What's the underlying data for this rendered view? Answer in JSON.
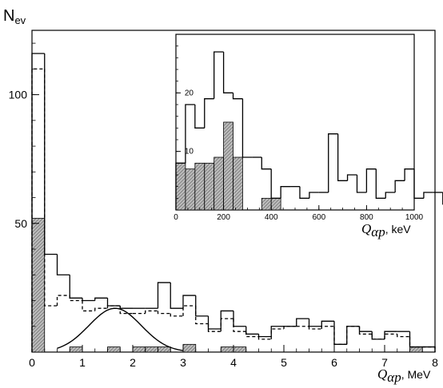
{
  "chart_data": [
    {
      "type": "histogram",
      "ylabel": "N",
      "ylabel_sub": "ev",
      "xlabel_main": "Q",
      "xlabel_sub": "αp",
      "xlabel_unit": ", MeV",
      "xlim": [
        0,
        8
      ],
      "ylim": [
        0,
        125
      ],
      "x_ticks": [
        0,
        1,
        2,
        3,
        4,
        5,
        6,
        7,
        8
      ],
      "x_tick_labels": [
        "0",
        "1",
        "2",
        "3",
        "4",
        "5",
        "6",
        "7",
        "8"
      ],
      "y_ticks": [
        50,
        100
      ],
      "y_tick_labels": [
        "50",
        "100"
      ],
      "bin_width": 0.25,
      "series": [
        {
          "style": "solid-step",
          "values": [
            116,
            38,
            30,
            21,
            20,
            21,
            18,
            17,
            17,
            17,
            27,
            17,
            22,
            14,
            9,
            16,
            10,
            7,
            6,
            10,
            10,
            13,
            10,
            12,
            3,
            10,
            8,
            5,
            8,
            8,
            2,
            2
          ]
        },
        {
          "style": "dashed-step",
          "values": [
            110,
            18,
            22,
            20,
            16,
            17,
            18,
            15,
            15,
            16,
            15,
            14,
            18,
            11,
            8,
            13,
            8,
            6,
            5,
            9,
            10,
            10,
            9,
            10,
            3,
            10,
            7,
            5,
            7,
            6,
            2,
            2
          ]
        },
        {
          "style": "hatched-filled",
          "values": [
            52,
            0,
            0,
            2,
            0,
            0,
            2,
            0,
            2,
            2,
            2,
            0,
            3,
            0,
            0,
            2,
            2,
            0,
            0,
            0,
            0,
            0,
            0,
            0,
            0,
            0,
            0,
            0,
            0,
            0,
            2,
            0
          ]
        },
        {
          "style": "solid-curve",
          "curve": {
            "shape": "gaussian",
            "mean": 1.65,
            "sigma": 0.52,
            "amplitude": 17,
            "from": 0.5,
            "to": 3.0
          }
        }
      ]
    },
    {
      "type": "histogram",
      "inset": true,
      "xlabel_main": "Q",
      "xlabel_sub": "αp",
      "xlabel_unit": ", keV",
      "xlim": [
        0,
        1000
      ],
      "ylim": [
        0,
        30
      ],
      "x_ticks": [
        0,
        200,
        400,
        600,
        800,
        1000
      ],
      "x_tick_labels": [
        "0",
        "200",
        "400",
        "600",
        "800",
        "1000"
      ],
      "y_ticks": [
        10,
        20
      ],
      "y_tick_labels": [
        "10",
        "20"
      ],
      "bin_width": 40,
      "series": [
        {
          "style": "solid-step",
          "values": [
            8,
            18,
            14,
            19,
            27,
            20,
            19,
            9,
            9,
            7,
            2,
            4,
            4,
            2,
            3,
            3,
            13,
            5,
            6,
            3,
            7,
            2,
            3,
            5,
            7,
            2,
            3,
            3,
            1,
            1,
            4
          ]
        },
        {
          "style": "hatched-filled",
          "values": [
            8,
            7,
            8,
            8,
            9,
            15,
            9,
            0,
            0,
            2,
            2,
            0,
            0,
            0,
            0,
            0,
            0,
            0,
            0,
            0,
            0,
            0,
            0,
            0,
            0,
            0,
            0,
            0,
            0,
            0,
            0
          ]
        }
      ]
    }
  ]
}
